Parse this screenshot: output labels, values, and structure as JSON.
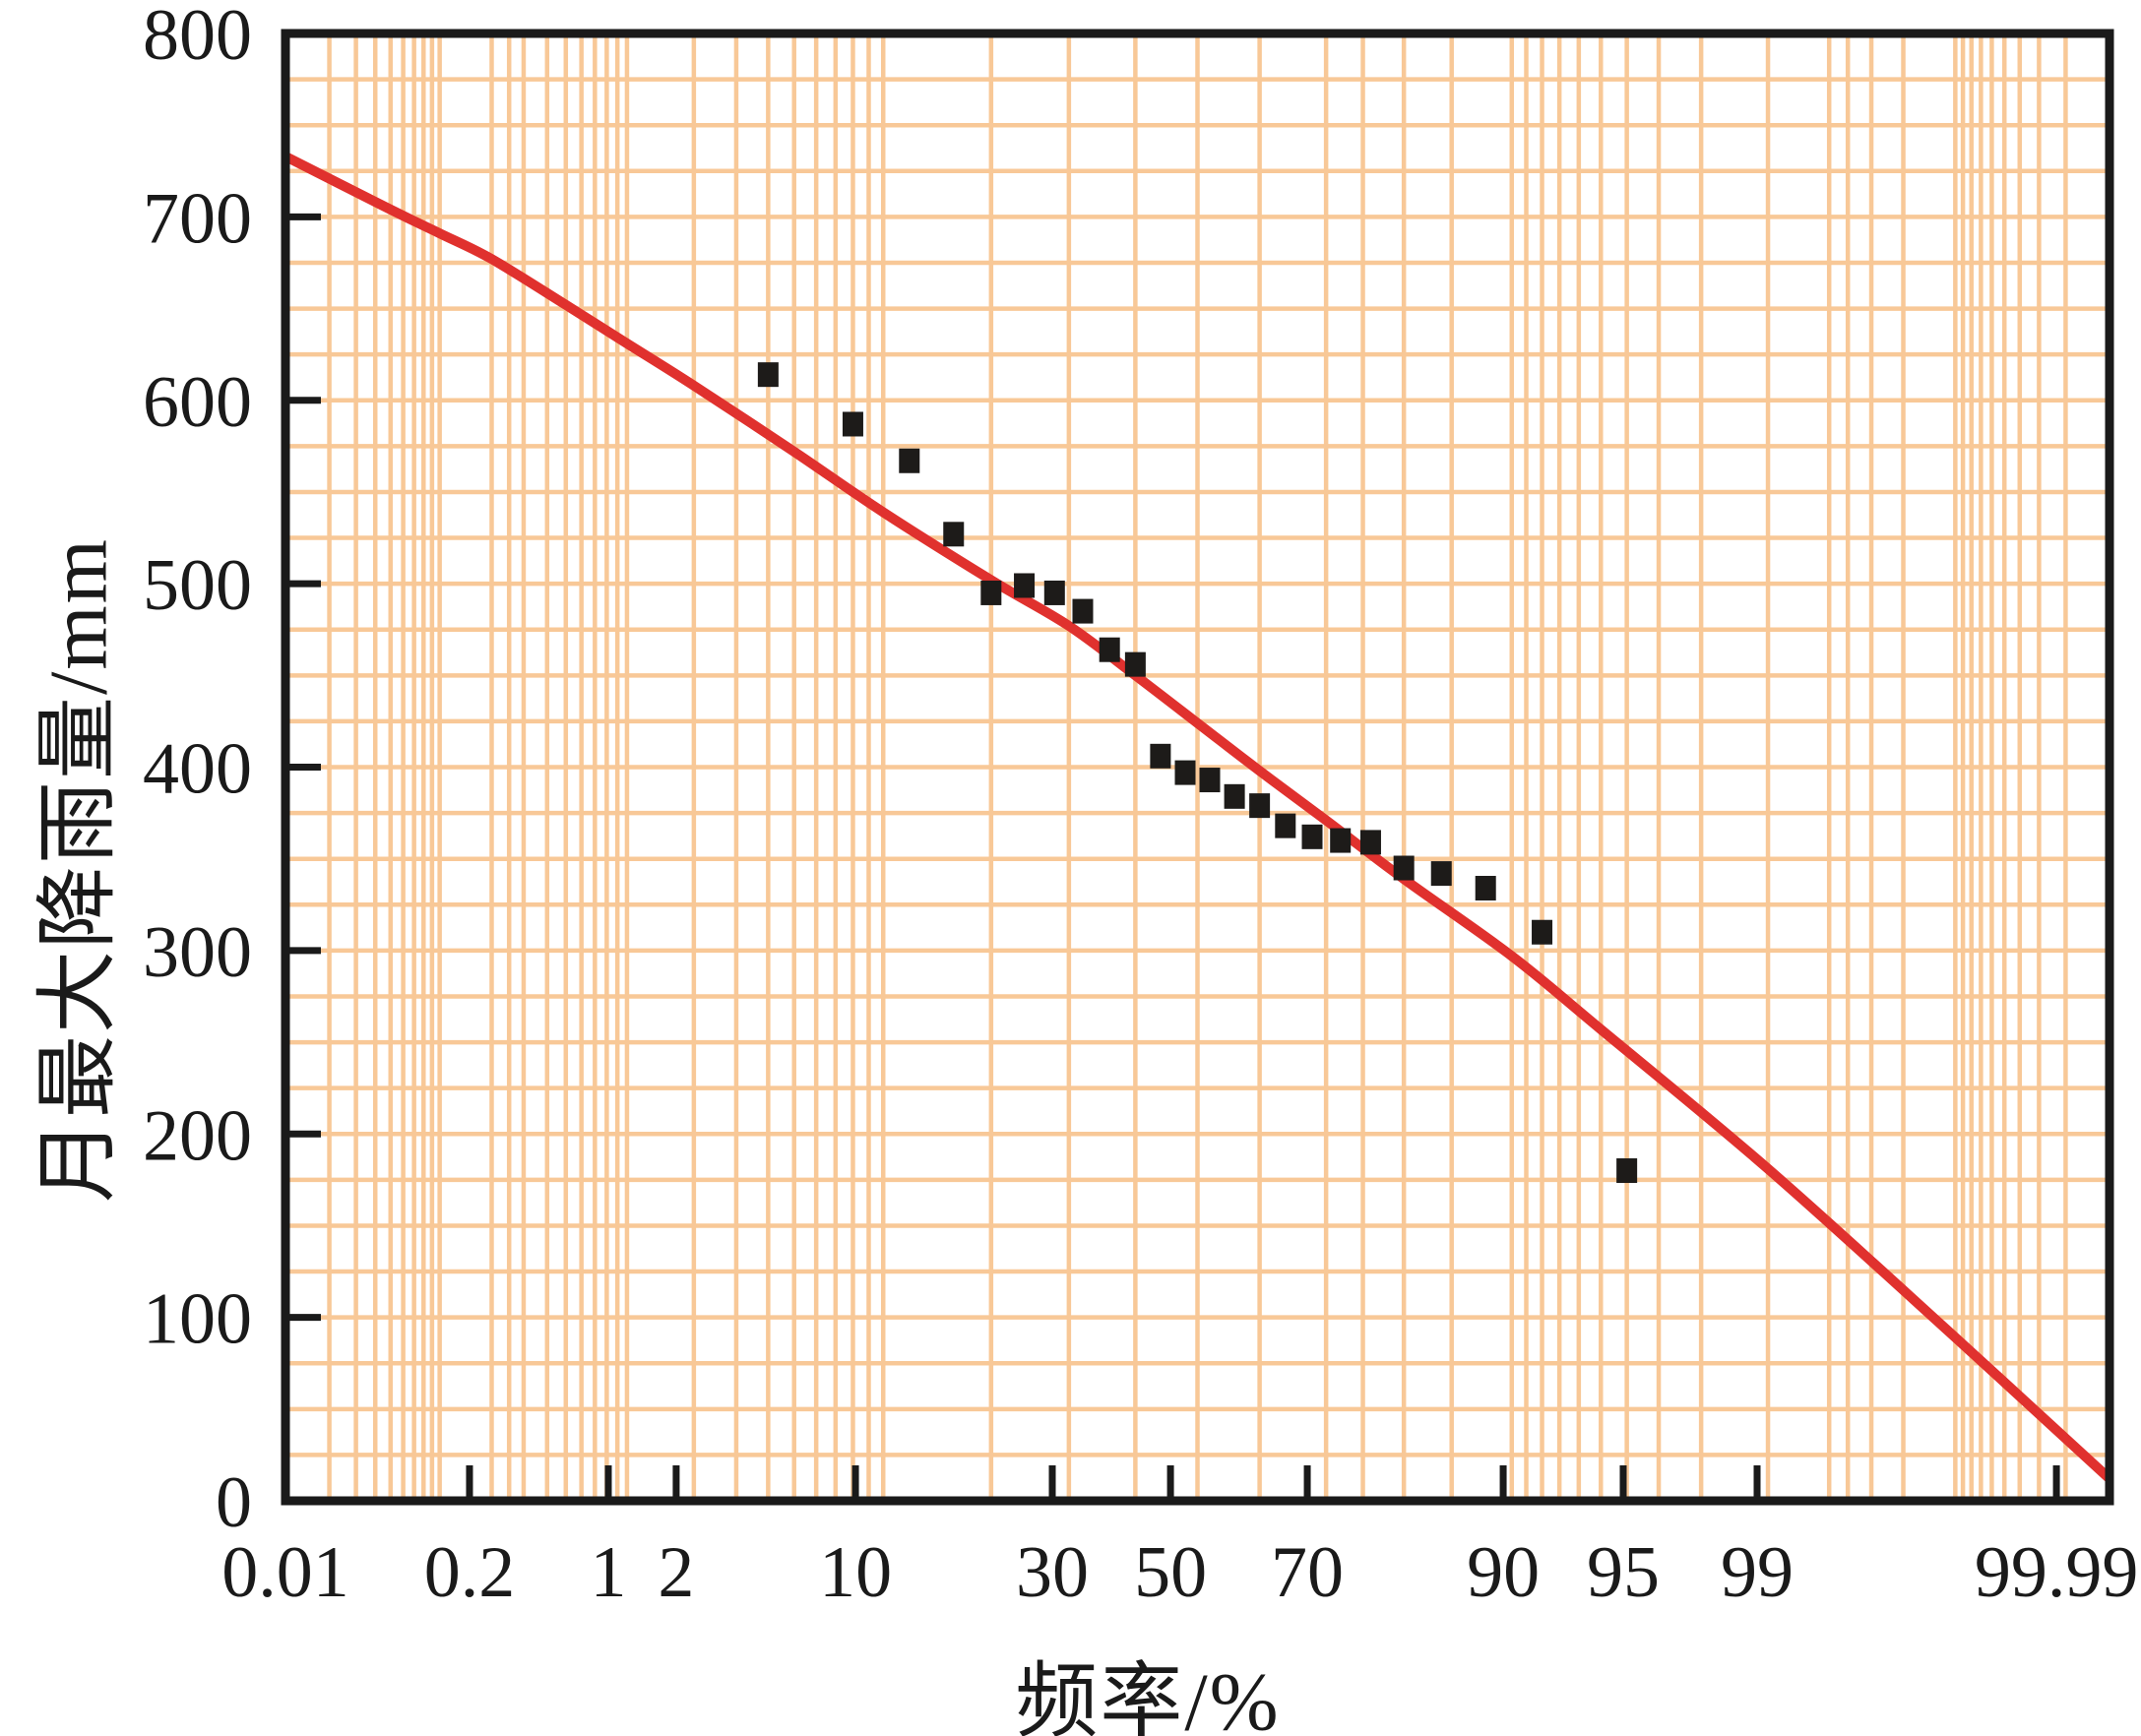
{
  "chart_data": {
    "type": "scatter",
    "description": "Monthly maximum rainfall frequency curve on normal-probability paper",
    "x_axis": {
      "label": "频率/%",
      "scale": "normal-probability",
      "min_percent": 0.01,
      "max_percent": 99.99,
      "ticks": [
        {
          "label": "0.01",
          "value": 0.01,
          "pos": 0.0
        },
        {
          "label": "0.2",
          "value": 0.2,
          "pos": 0.1009
        },
        {
          "label": "1",
          "value": 1,
          "pos": 0.177
        },
        {
          "label": "2",
          "value": 2,
          "pos": 0.2142
        },
        {
          "label": "10",
          "value": 10,
          "pos": 0.3125
        },
        {
          "label": "30",
          "value": 30,
          "pos": 0.4204
        },
        {
          "label": "50",
          "value": 50,
          "pos": 0.4852
        },
        {
          "label": "70",
          "value": 70,
          "pos": 0.5602
        },
        {
          "label": "90",
          "value": 90,
          "pos": 0.6676
        },
        {
          "label": "95",
          "value": 95,
          "pos": 0.7334
        },
        {
          "label": "99",
          "value": 99,
          "pos": 0.8068
        },
        {
          "label": "99.99",
          "value": 99.99,
          "pos": 0.9709
        }
      ],
      "grid_lines_percent": [
        0.02,
        0.03,
        0.04,
        0.05,
        0.06,
        0.07,
        0.08,
        0.09,
        0.1,
        0.2,
        0.25,
        0.3,
        0.4,
        0.5,
        0.6,
        0.7,
        0.8,
        0.9,
        1,
        2,
        3,
        4,
        5,
        6,
        7,
        8,
        9,
        10,
        20,
        30,
        40,
        50,
        60,
        70,
        75,
        80,
        85,
        90,
        91,
        92,
        93,
        94,
        95,
        96,
        97,
        98,
        99,
        99.5,
        99.6,
        99.7,
        99.8,
        99.9,
        99.91,
        99.92,
        99.93,
        99.94,
        99.95,
        99.96,
        99.97,
        99.98
      ]
    },
    "y_axis": {
      "label": "月最大降雨量/mm",
      "min": 0,
      "max": 800,
      "tick_step": 100,
      "tick_labels": [
        "0",
        "100",
        "200",
        "300",
        "400",
        "500",
        "600",
        "700",
        "800"
      ],
      "grid_step": 25
    },
    "legend": "none",
    "grid": "on",
    "series": [
      {
        "name": "observed-points",
        "type": "scatter",
        "marker": "square",
        "color": "#1d1b19",
        "points": [
          {
            "p": 4,
            "mm": 614
          },
          {
            "p": 8,
            "mm": 587
          },
          {
            "p": 12,
            "mm": 567
          },
          {
            "p": 16,
            "mm": 527
          },
          {
            "p": 20,
            "mm": 495
          },
          {
            "p": 24,
            "mm": 499
          },
          {
            "p": 28,
            "mm": 495
          },
          {
            "p": 32,
            "mm": 485
          },
          {
            "p": 36,
            "mm": 464
          },
          {
            "p": 40,
            "mm": 456
          },
          {
            "p": 44,
            "mm": 406
          },
          {
            "p": 48,
            "mm": 397
          },
          {
            "p": 52,
            "mm": 393
          },
          {
            "p": 56,
            "mm": 384
          },
          {
            "p": 60,
            "mm": 379
          },
          {
            "p": 64,
            "mm": 368
          },
          {
            "p": 68,
            "mm": 362
          },
          {
            "p": 72,
            "mm": 360
          },
          {
            "p": 76,
            "mm": 359
          },
          {
            "p": 80,
            "mm": 345
          },
          {
            "p": 84,
            "mm": 342
          },
          {
            "p": 88,
            "mm": 334
          },
          {
            "p": 92,
            "mm": 310
          },
          {
            "p": 96,
            "mm": 180
          }
        ]
      },
      {
        "name": "fitted-frequency-curve",
        "type": "line",
        "color": "#e0312e",
        "points": [
          {
            "p": 0.01,
            "mm": 733
          },
          {
            "p": 0.05,
            "mm": 704
          },
          {
            "p": 0.1,
            "mm": 691
          },
          {
            "p": 0.2,
            "mm": 677
          },
          {
            "p": 0.5,
            "mm": 652
          },
          {
            "p": 1,
            "mm": 631
          },
          {
            "p": 2,
            "mm": 608
          },
          {
            "p": 5,
            "mm": 572
          },
          {
            "p": 10,
            "mm": 539
          },
          {
            "p": 20,
            "mm": 502
          },
          {
            "p": 30,
            "mm": 477
          },
          {
            "p": 40,
            "mm": 450
          },
          {
            "p": 50,
            "mm": 424
          },
          {
            "p": 60,
            "mm": 398
          },
          {
            "p": 70,
            "mm": 371
          },
          {
            "p": 80,
            "mm": 339
          },
          {
            "p": 90,
            "mm": 297
          },
          {
            "p": 95,
            "mm": 257
          },
          {
            "p": 99,
            "mm": 181
          },
          {
            "p": 99.9,
            "mm": 89
          },
          {
            "p": 99.99,
            "mm": 12
          }
        ]
      }
    ],
    "colors": {
      "grid": "#f8c897",
      "axis": "#1a1a1a",
      "curve": "#e0312e",
      "marker": "#1d1b19",
      "background": "#ffffff"
    }
  }
}
